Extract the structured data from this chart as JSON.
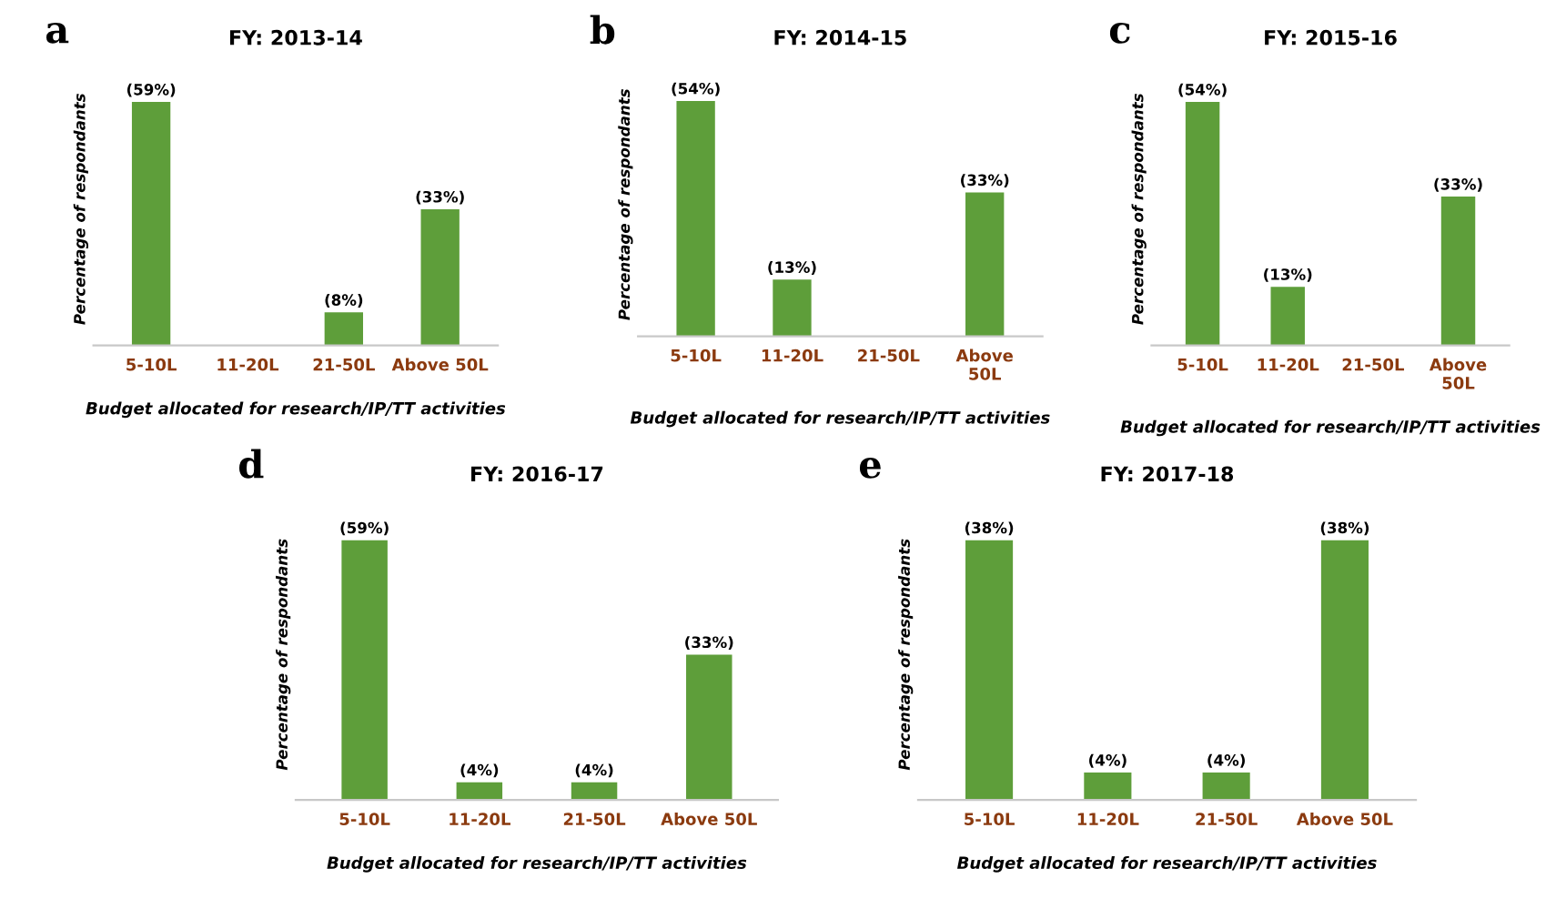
{
  "chart_data": [
    {
      "type": "bar",
      "title": "FY: 2013-14",
      "xlabel": "Budget allocated for research/IP/TT activities",
      "ylabel": "Percentage of respondants",
      "annotations": [
        "a"
      ],
      "categories": [
        "5-10L",
        "11-20L",
        "21-50L",
        "Above 50L"
      ],
      "values": [
        59,
        0,
        8,
        33
      ],
      "value_labels": [
        "(59%)",
        null,
        "(8%)",
        "(33%)"
      ],
      "color": "#5e9e3a",
      "tick_labels": "x"
    },
    {
      "type": "bar",
      "title": "FY: 2014-15",
      "xlabel": "Budget allocated for research/IP/TT activities",
      "ylabel": "Percentage of respondants",
      "annotations": [
        "b"
      ],
      "categories": [
        "5-10L",
        "11-20L",
        "21-50L",
        "Above\n50L"
      ],
      "values": [
        54,
        13,
        0,
        33
      ],
      "value_labels": [
        "(54%)",
        "(13%)",
        null,
        "(33%)"
      ],
      "color": "#5e9e3a",
      "tick_labels": "x"
    },
    {
      "type": "bar",
      "title": "FY: 2015-16",
      "xlabel": "Budget allocated for research/IP/TT activities",
      "ylabel": "Percentage of respondants",
      "annotations": [
        "c"
      ],
      "categories": [
        "5-10L",
        "11-20L",
        "21-50L",
        "Above\n50L"
      ],
      "values": [
        54,
        13,
        0,
        33
      ],
      "value_labels": [
        "(54%)",
        "(13%)",
        null,
        "(33%)"
      ],
      "color": "#5e9e3a",
      "tick_labels": "x"
    },
    {
      "type": "bar",
      "title": "FY: 2016-17",
      "xlabel": "Budget allocated for research/IP/TT activities",
      "ylabel": "Percentage of respondants",
      "annotations": [
        "d"
      ],
      "categories": [
        "5-10L",
        "11-20L",
        "21-50L",
        "Above 50L"
      ],
      "values": [
        59,
        4,
        4,
        33
      ],
      "value_labels": [
        "(59%)",
        "(4%)",
        "(4%)",
        "(33%)"
      ],
      "color": "#5e9e3a",
      "tick_labels": "x"
    },
    {
      "type": "bar",
      "title": "FY: 2017-18",
      "xlabel": "Budget allocated for research/IP/TT activities",
      "ylabel": "Percentage of respondants",
      "annotations": [
        "e"
      ],
      "categories": [
        "5-10L",
        "11-20L",
        "21-50L",
        "Above 50L"
      ],
      "values": [
        38,
        4,
        4,
        38
      ],
      "value_labels": [
        "(38%)",
        "(4%)",
        "(4%)",
        "(38%)"
      ],
      "color": "#5e9e3a",
      "tick_labels": "x"
    }
  ]
}
